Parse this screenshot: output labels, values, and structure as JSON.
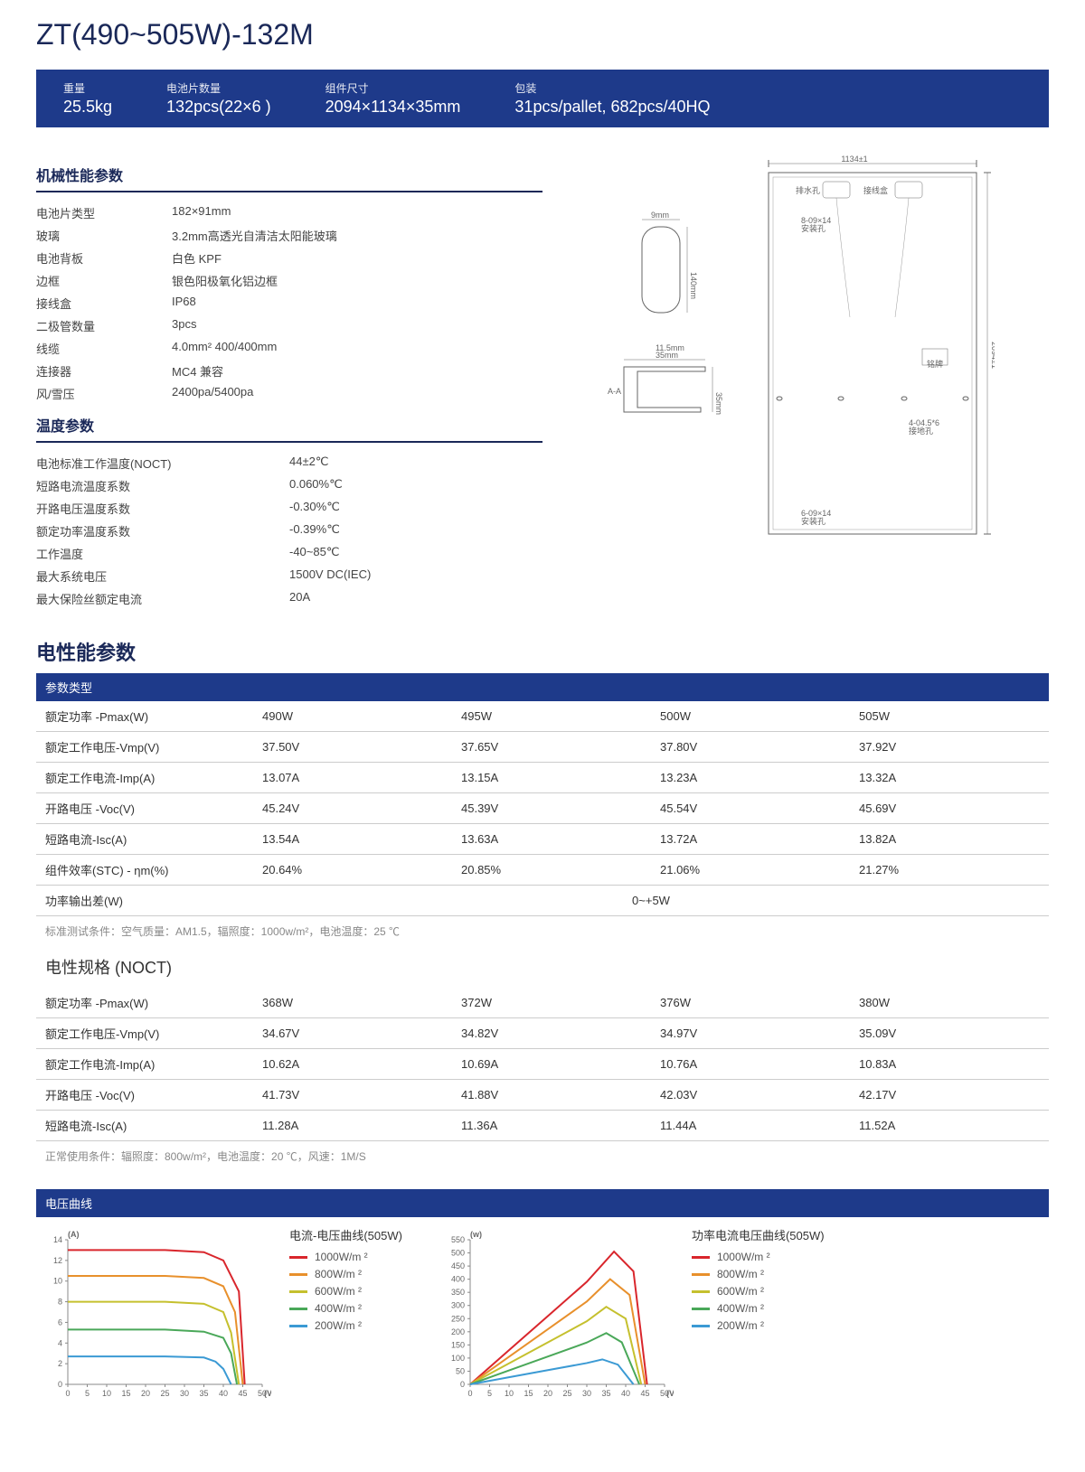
{
  "title": "ZT(490~505W)-132M",
  "header": [
    {
      "label": "重量",
      "value": "25.5kg"
    },
    {
      "label": "电池片数量",
      "value": "132pcs(22×6 )"
    },
    {
      "label": "组件尺寸",
      "value": "2094×1134×35mm"
    },
    {
      "label": "包装",
      "value": "31pcs/pallet, 682pcs/40HQ"
    }
  ],
  "mech": {
    "title": "机械性能参数",
    "rows": [
      {
        "k": "电池片类型",
        "v": "182×91mm"
      },
      {
        "k": "玻璃",
        "v": "3.2mm高透光自清洁太阳能玻璃"
      },
      {
        "k": "电池背板",
        "v": "白色 KPF"
      },
      {
        "k": "边框",
        "v": "银色阳极氧化铝边框"
      },
      {
        "k": "接线盒",
        "v": "IP68"
      },
      {
        "k": "二极管数量",
        "v": "3pcs"
      },
      {
        "k": "线缆",
        "v": "4.0mm² 400/400mm"
      },
      {
        "k": "连接器",
        "v": "MC4 兼容"
      },
      {
        "k": "风/雪压",
        "v": "2400pa/5400pa"
      }
    ]
  },
  "temp": {
    "title": "温度参数",
    "rows": [
      {
        "k": "电池标准工作温度(NOCT)",
        "v": "44±2℃"
      },
      {
        "k": "短路电流温度系数",
        "v": "0.060%℃"
      },
      {
        "k": "开路电压温度系数",
        "v": "-0.30%℃"
      },
      {
        "k": "额定功率温度系数",
        "v": "-0.39%℃"
      },
      {
        "k": "工作温度",
        "v": "-40~85℃"
      },
      {
        "k": "最大系统电压",
        "v": "1500V DC(IEC)"
      },
      {
        "k": "最大保险丝额定电流",
        "v": "20A"
      }
    ]
  },
  "elec": {
    "title": "电性能参数",
    "header": "参数类型",
    "rows": [
      [
        "额定功率 -Pmax(W)",
        "490W",
        "495W",
        "500W",
        "505W"
      ],
      [
        "额定工作电压-Vmp(V)",
        "37.50V",
        "37.65V",
        "37.80V",
        "37.92V"
      ],
      [
        "额定工作电流-Imp(A)",
        "13.07A",
        "13.15A",
        "13.23A",
        "13.32A"
      ],
      [
        "开路电压 -Voc(V)",
        "45.24V",
        "45.39V",
        "45.54V",
        "45.69V"
      ],
      [
        "短路电流-Isc(A)",
        "13.54A",
        "13.63A",
        "13.72A",
        "13.82A"
      ],
      [
        "组件效率(STC) - ηm(%)",
        "20.64%",
        "20.85%",
        "21.06%",
        "21.27%"
      ]
    ],
    "power_tolerance": {
      "label": "功率输出差(W)",
      "value": "0~+5W"
    },
    "footnote": "标准测试条件：空气质量：AM1.5，辐照度：1000w/m²，电池温度：25 ℃"
  },
  "noct": {
    "title": "电性规格 (NOCT)",
    "rows": [
      [
        "额定功率 -Pmax(W)",
        "368W",
        "372W",
        "376W",
        "380W"
      ],
      [
        "额定工作电压-Vmp(V)",
        "34.67V",
        "34.82V",
        "34.97V",
        "35.09V"
      ],
      [
        "额定工作电流-Imp(A)",
        "10.62A",
        "10.69A",
        "10.76A",
        "10.83A"
      ],
      [
        "开路电压 -Voc(V)",
        "41.73V",
        "41.88V",
        "42.03V",
        "42.17V"
      ],
      [
        "短路电流-Isc(A)",
        "11.28A",
        "11.36A",
        "11.44A",
        "11.52A"
      ]
    ],
    "footnote": "正常使用条件：辐照度：800w/m²，电池温度：20 ℃，风速：1M/S"
  },
  "charts": {
    "header": "电压曲线",
    "iv": {
      "title": "电流-电压曲线(505W)",
      "y_label": "(A)",
      "x_label": "(V)",
      "x_ticks": [
        0,
        5,
        10,
        15,
        20,
        25,
        30,
        35,
        40,
        45,
        50
      ],
      "y_ticks": [
        0,
        2,
        4,
        6,
        8,
        10,
        12,
        14
      ],
      "y_max": 14,
      "x_max": 50,
      "series": [
        {
          "label": "1000W/m ²",
          "color": "#d9262c",
          "points": [
            [
              0,
              13.0
            ],
            [
              25,
              13.0
            ],
            [
              35,
              12.8
            ],
            [
              40,
              12.0
            ],
            [
              44,
              9.0
            ],
            [
              45.5,
              0
            ]
          ]
        },
        {
          "label": "800W/m ²",
          "color": "#e8902c",
          "points": [
            [
              0,
              10.5
            ],
            [
              25,
              10.5
            ],
            [
              35,
              10.3
            ],
            [
              40,
              9.5
            ],
            [
              43,
              7.0
            ],
            [
              45,
              0
            ]
          ]
        },
        {
          "label": "600W/m ²",
          "color": "#c5c02e",
          "points": [
            [
              0,
              8.0
            ],
            [
              25,
              8.0
            ],
            [
              35,
              7.8
            ],
            [
              40,
              7.0
            ],
            [
              42,
              5.0
            ],
            [
              44,
              0
            ]
          ]
        },
        {
          "label": "400W/m ²",
          "color": "#4aa859",
          "points": [
            [
              0,
              5.3
            ],
            [
              25,
              5.3
            ],
            [
              35,
              5.1
            ],
            [
              40,
              4.5
            ],
            [
              42,
              3.0
            ],
            [
              43.5,
              0
            ]
          ]
        },
        {
          "label": "200W/m ²",
          "color": "#3b9ad4",
          "points": [
            [
              0,
              2.7
            ],
            [
              25,
              2.7
            ],
            [
              35,
              2.6
            ],
            [
              38,
              2.2
            ],
            [
              40,
              1.5
            ],
            [
              42,
              0
            ]
          ]
        }
      ]
    },
    "pv": {
      "title": "功率电流电压曲线(505W)",
      "y_label": "(w)",
      "x_label": "(V)",
      "x_ticks": [
        0,
        5,
        10,
        15,
        20,
        25,
        30,
        35,
        40,
        45,
        50
      ],
      "y_ticks": [
        0,
        50,
        100,
        150,
        200,
        250,
        300,
        350,
        400,
        450,
        500,
        550
      ],
      "y_max": 550,
      "x_max": 50,
      "series": [
        {
          "label": "1000W/m ²",
          "color": "#d9262c",
          "points": [
            [
              0,
              0
            ],
            [
              10,
              130
            ],
            [
              20,
              260
            ],
            [
              30,
              390
            ],
            [
              37,
              505
            ],
            [
              42,
              430
            ],
            [
              45.5,
              0
            ]
          ]
        },
        {
          "label": "800W/m ²",
          "color": "#e8902c",
          "points": [
            [
              0,
              0
            ],
            [
              10,
              105
            ],
            [
              20,
              210
            ],
            [
              30,
              315
            ],
            [
              36,
              400
            ],
            [
              41,
              340
            ],
            [
              45,
              0
            ]
          ]
        },
        {
          "label": "600W/m ²",
          "color": "#c5c02e",
          "points": [
            [
              0,
              0
            ],
            [
              10,
              80
            ],
            [
              20,
              160
            ],
            [
              30,
              240
            ],
            [
              35,
              295
            ],
            [
              40,
              250
            ],
            [
              44,
              0
            ]
          ]
        },
        {
          "label": "400W/m ²",
          "color": "#4aa859",
          "points": [
            [
              0,
              0
            ],
            [
              10,
              53
            ],
            [
              20,
              106
            ],
            [
              30,
              159
            ],
            [
              35,
              195
            ],
            [
              39,
              160
            ],
            [
              43.5,
              0
            ]
          ]
        },
        {
          "label": "200W/m ²",
          "color": "#3b9ad4",
          "points": [
            [
              0,
              0
            ],
            [
              10,
              27
            ],
            [
              20,
              54
            ],
            [
              30,
              81
            ],
            [
              34,
              95
            ],
            [
              38,
              75
            ],
            [
              42,
              0
            ]
          ]
        }
      ]
    }
  },
  "diagram": {
    "panel_width_label": "1134±1",
    "panel_height_label": "2094±1",
    "jbox_w": "9mm",
    "jbox_h": "140mm",
    "frame_w": "35mm",
    "frame_top": "11.5mm",
    "frame_h": "35mm",
    "section_label": "A-A"
  }
}
